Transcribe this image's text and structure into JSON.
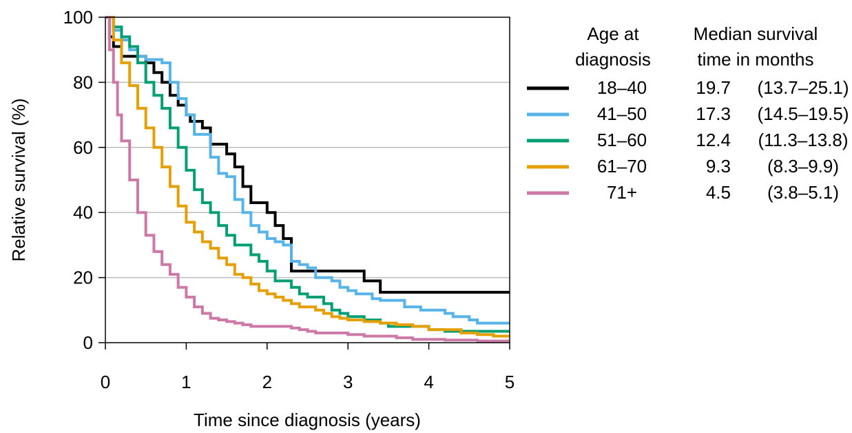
{
  "chart_data": {
    "type": "line",
    "xlabel": "Time since diagnosis (years)",
    "ylabel": "Relative survival (%)",
    "xlim": [
      0,
      5
    ],
    "ylim": [
      0,
      100
    ],
    "xticks": [
      0,
      1,
      2,
      3,
      4,
      5
    ],
    "yticks": [
      0,
      20,
      40,
      60,
      80,
      100
    ],
    "grid": "horizontal",
    "legend_position": "right",
    "legend_header": {
      "age_line1": "Age at",
      "age_line2": "diagnosis",
      "median_line1": "Median survival",
      "median_line2": "time in months"
    },
    "series": [
      {
        "name": "18–40",
        "median": "19.7",
        "ci": "(13.7–25.1)",
        "color": "#000000",
        "points": [
          [
            0,
            100
          ],
          [
            0.05,
            94
          ],
          [
            0.1,
            91
          ],
          [
            0.2,
            88
          ],
          [
            0.3,
            88
          ],
          [
            0.4,
            88
          ],
          [
            0.5,
            86
          ],
          [
            0.6,
            83
          ],
          [
            0.7,
            80
          ],
          [
            0.8,
            76
          ],
          [
            0.9,
            73
          ],
          [
            1.0,
            70
          ],
          [
            1.05,
            68
          ],
          [
            1.1,
            68
          ],
          [
            1.2,
            66
          ],
          [
            1.3,
            61
          ],
          [
            1.4,
            61
          ],
          [
            1.5,
            58
          ],
          [
            1.6,
            54
          ],
          [
            1.7,
            48
          ],
          [
            1.8,
            43
          ],
          [
            1.9,
            43
          ],
          [
            2.0,
            40
          ],
          [
            2.1,
            36
          ],
          [
            2.2,
            32
          ],
          [
            2.3,
            22
          ],
          [
            2.4,
            22
          ],
          [
            2.6,
            22
          ],
          [
            2.8,
            22
          ],
          [
            3.0,
            22
          ],
          [
            3.2,
            19
          ],
          [
            3.3,
            19
          ],
          [
            3.4,
            15.5
          ],
          [
            4.0,
            15.5
          ],
          [
            5.0,
            15.5
          ]
        ]
      },
      {
        "name": "41–50",
        "median": "17.3",
        "ci": "(14.5–19.5)",
        "color": "#56B4E9",
        "points": [
          [
            0,
            100
          ],
          [
            0.1,
            96
          ],
          [
            0.2,
            93
          ],
          [
            0.3,
            90
          ],
          [
            0.4,
            88
          ],
          [
            0.5,
            87
          ],
          [
            0.6,
            87
          ],
          [
            0.7,
            86
          ],
          [
            0.8,
            80
          ],
          [
            0.9,
            75
          ],
          [
            1.0,
            70
          ],
          [
            1.1,
            64
          ],
          [
            1.2,
            64
          ],
          [
            1.3,
            57
          ],
          [
            1.4,
            52
          ],
          [
            1.5,
            51
          ],
          [
            1.6,
            44
          ],
          [
            1.7,
            40
          ],
          [
            1.8,
            36
          ],
          [
            1.9,
            34
          ],
          [
            2.0,
            32
          ],
          [
            2.1,
            31
          ],
          [
            2.2,
            30
          ],
          [
            2.3,
            25
          ],
          [
            2.4,
            24
          ],
          [
            2.5,
            23
          ],
          [
            2.6,
            20
          ],
          [
            2.7,
            20
          ],
          [
            2.8,
            19
          ],
          [
            2.9,
            17
          ],
          [
            3.0,
            16
          ],
          [
            3.1,
            15
          ],
          [
            3.2,
            15
          ],
          [
            3.3,
            13.5
          ],
          [
            3.4,
            13
          ],
          [
            3.6,
            13
          ],
          [
            3.7,
            11
          ],
          [
            3.8,
            11
          ],
          [
            3.9,
            10
          ],
          [
            4.0,
            10
          ],
          [
            4.2,
            9
          ],
          [
            4.3,
            8
          ],
          [
            4.4,
            8
          ],
          [
            4.5,
            7
          ],
          [
            4.6,
            6
          ],
          [
            5.0,
            6
          ]
        ]
      },
      {
        "name": "51–60",
        "median": "12.4",
        "ci": "(11.3–13.8)",
        "color": "#009E73",
        "points": [
          [
            0,
            100
          ],
          [
            0.1,
            97
          ],
          [
            0.2,
            94
          ],
          [
            0.3,
            91
          ],
          [
            0.4,
            86
          ],
          [
            0.5,
            80
          ],
          [
            0.6,
            76
          ],
          [
            0.7,
            72
          ],
          [
            0.8,
            66
          ],
          [
            0.9,
            60
          ],
          [
            1.0,
            53
          ],
          [
            1.1,
            47
          ],
          [
            1.2,
            43
          ],
          [
            1.3,
            40
          ],
          [
            1.4,
            36
          ],
          [
            1.5,
            33
          ],
          [
            1.6,
            30
          ],
          [
            1.7,
            30
          ],
          [
            1.8,
            27
          ],
          [
            1.9,
            25
          ],
          [
            2.0,
            22
          ],
          [
            2.1,
            19
          ],
          [
            2.2,
            19
          ],
          [
            2.3,
            17
          ],
          [
            2.4,
            15
          ],
          [
            2.5,
            14
          ],
          [
            2.6,
            14
          ],
          [
            2.7,
            12
          ],
          [
            2.8,
            10
          ],
          [
            2.9,
            9
          ],
          [
            3.0,
            8
          ],
          [
            3.2,
            7
          ],
          [
            3.4,
            6
          ],
          [
            3.5,
            5
          ],
          [
            3.6,
            5
          ],
          [
            3.8,
            5
          ],
          [
            4.0,
            4
          ],
          [
            4.2,
            3.5
          ],
          [
            5.0,
            3.5
          ]
        ]
      },
      {
        "name": "61–70",
        "median": "9.3",
        "ci": "(8.3–9.9)",
        "color": "#E69F00",
        "points": [
          [
            0,
            100
          ],
          [
            0.1,
            93
          ],
          [
            0.2,
            86
          ],
          [
            0.3,
            79
          ],
          [
            0.4,
            72
          ],
          [
            0.5,
            66
          ],
          [
            0.6,
            60
          ],
          [
            0.7,
            54
          ],
          [
            0.8,
            48
          ],
          [
            0.9,
            42
          ],
          [
            1.0,
            37
          ],
          [
            1.1,
            34
          ],
          [
            1.2,
            31
          ],
          [
            1.3,
            29
          ],
          [
            1.4,
            26
          ],
          [
            1.5,
            24
          ],
          [
            1.6,
            21
          ],
          [
            1.7,
            20
          ],
          [
            1.8,
            18
          ],
          [
            1.9,
            16
          ],
          [
            2.0,
            15
          ],
          [
            2.1,
            14
          ],
          [
            2.2,
            13
          ],
          [
            2.3,
            12
          ],
          [
            2.4,
            11
          ],
          [
            2.5,
            11
          ],
          [
            2.6,
            10
          ],
          [
            2.7,
            9
          ],
          [
            2.8,
            8
          ],
          [
            2.9,
            7.5
          ],
          [
            3.0,
            7
          ],
          [
            3.2,
            6.5
          ],
          [
            3.4,
            6
          ],
          [
            3.6,
            5.5
          ],
          [
            3.8,
            5
          ],
          [
            4.0,
            4
          ],
          [
            4.2,
            4
          ],
          [
            4.4,
            3
          ],
          [
            4.6,
            2.5
          ],
          [
            4.8,
            2
          ],
          [
            5.0,
            2
          ]
        ]
      },
      {
        "name": "71+",
        "median": "4.5",
        "ci": "(3.8–5.1)",
        "color": "#CC79A7",
        "points": [
          [
            0,
            100
          ],
          [
            0.05,
            90
          ],
          [
            0.1,
            80
          ],
          [
            0.15,
            70
          ],
          [
            0.2,
            62
          ],
          [
            0.3,
            50
          ],
          [
            0.4,
            40
          ],
          [
            0.5,
            33
          ],
          [
            0.6,
            28
          ],
          [
            0.7,
            24
          ],
          [
            0.8,
            21
          ],
          [
            0.9,
            17
          ],
          [
            1.0,
            14
          ],
          [
            1.1,
            11
          ],
          [
            1.2,
            9
          ],
          [
            1.3,
            7.5
          ],
          [
            1.4,
            7
          ],
          [
            1.5,
            6.5
          ],
          [
            1.6,
            6
          ],
          [
            1.7,
            5.5
          ],
          [
            1.8,
            5
          ],
          [
            2.0,
            5
          ],
          [
            2.2,
            5
          ],
          [
            2.3,
            4.5
          ],
          [
            2.4,
            4
          ],
          [
            2.5,
            3.5
          ],
          [
            2.6,
            3
          ],
          [
            2.8,
            3
          ],
          [
            3.0,
            2.5
          ],
          [
            3.2,
            2
          ],
          [
            3.4,
            2
          ],
          [
            3.6,
            1.5
          ],
          [
            3.8,
            1
          ],
          [
            4.0,
            1
          ],
          [
            4.2,
            0.8
          ],
          [
            4.6,
            0.5
          ],
          [
            5.0,
            0.5
          ]
        ]
      }
    ]
  }
}
